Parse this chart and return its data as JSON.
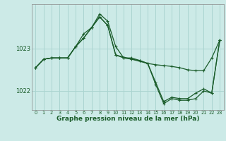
{
  "background_color": "#cceae7",
  "grid_color": "#aad4d0",
  "line_color": "#1a5c2a",
  "xlabel": "Graphe pression niveau de la mer (hPa)",
  "xlim": [
    -0.5,
    23.5
  ],
  "ylim": [
    1021.55,
    1024.05
  ],
  "yticks": [
    1022,
    1023
  ],
  "xticks": [
    0,
    1,
    2,
    3,
    4,
    5,
    6,
    7,
    8,
    9,
    10,
    11,
    12,
    13,
    14,
    15,
    16,
    17,
    18,
    19,
    20,
    21,
    22,
    23
  ],
  "series": [
    {
      "x": [
        0,
        1,
        2,
        3,
        4,
        5,
        6,
        7,
        8,
        9,
        10,
        14,
        15,
        16,
        17,
        18,
        19,
        20,
        21,
        22,
        23
      ],
      "y": [
        1022.55,
        1022.75,
        1022.78,
        1022.78,
        1022.78,
        1023.05,
        1023.25,
        1023.5,
        1023.75,
        1023.55,
        1022.85,
        1022.65,
        1022.62,
        1022.6,
        1022.58,
        1022.55,
        1022.5,
        1022.48,
        1022.48,
        1022.78,
        1023.2
      ]
    },
    {
      "x": [
        0,
        1,
        2,
        3,
        4,
        5,
        6,
        7,
        8,
        9,
        10,
        11,
        12,
        13,
        14,
        15,
        16,
        17,
        18,
        19,
        20,
        21,
        22,
        23
      ],
      "y": [
        1022.55,
        1022.75,
        1022.78,
        1022.78,
        1022.78,
        1023.05,
        1023.25,
        1023.5,
        1023.75,
        1023.55,
        1022.85,
        1022.78,
        1022.75,
        1022.72,
        1022.65,
        1022.2,
        1021.75,
        1021.85,
        1021.82,
        1021.82,
        1021.95,
        1022.05,
        1021.95,
        1023.2
      ]
    },
    {
      "x": [
        0,
        1,
        2,
        3,
        4,
        5,
        6,
        7,
        8,
        9,
        10,
        11,
        12,
        13,
        14,
        15,
        16,
        17,
        18,
        19,
        20,
        21,
        22,
        23
      ],
      "y": [
        1022.55,
        1022.75,
        1022.78,
        1022.78,
        1022.78,
        1023.05,
        1023.35,
        1023.5,
        1023.82,
        1023.65,
        1023.05,
        1022.78,
        1022.78,
        1022.72,
        1022.65,
        1022.15,
        1021.7,
        1021.82,
        1021.78,
        1021.78,
        1021.82,
        1022.0,
        1021.95,
        1023.2
      ]
    }
  ]
}
